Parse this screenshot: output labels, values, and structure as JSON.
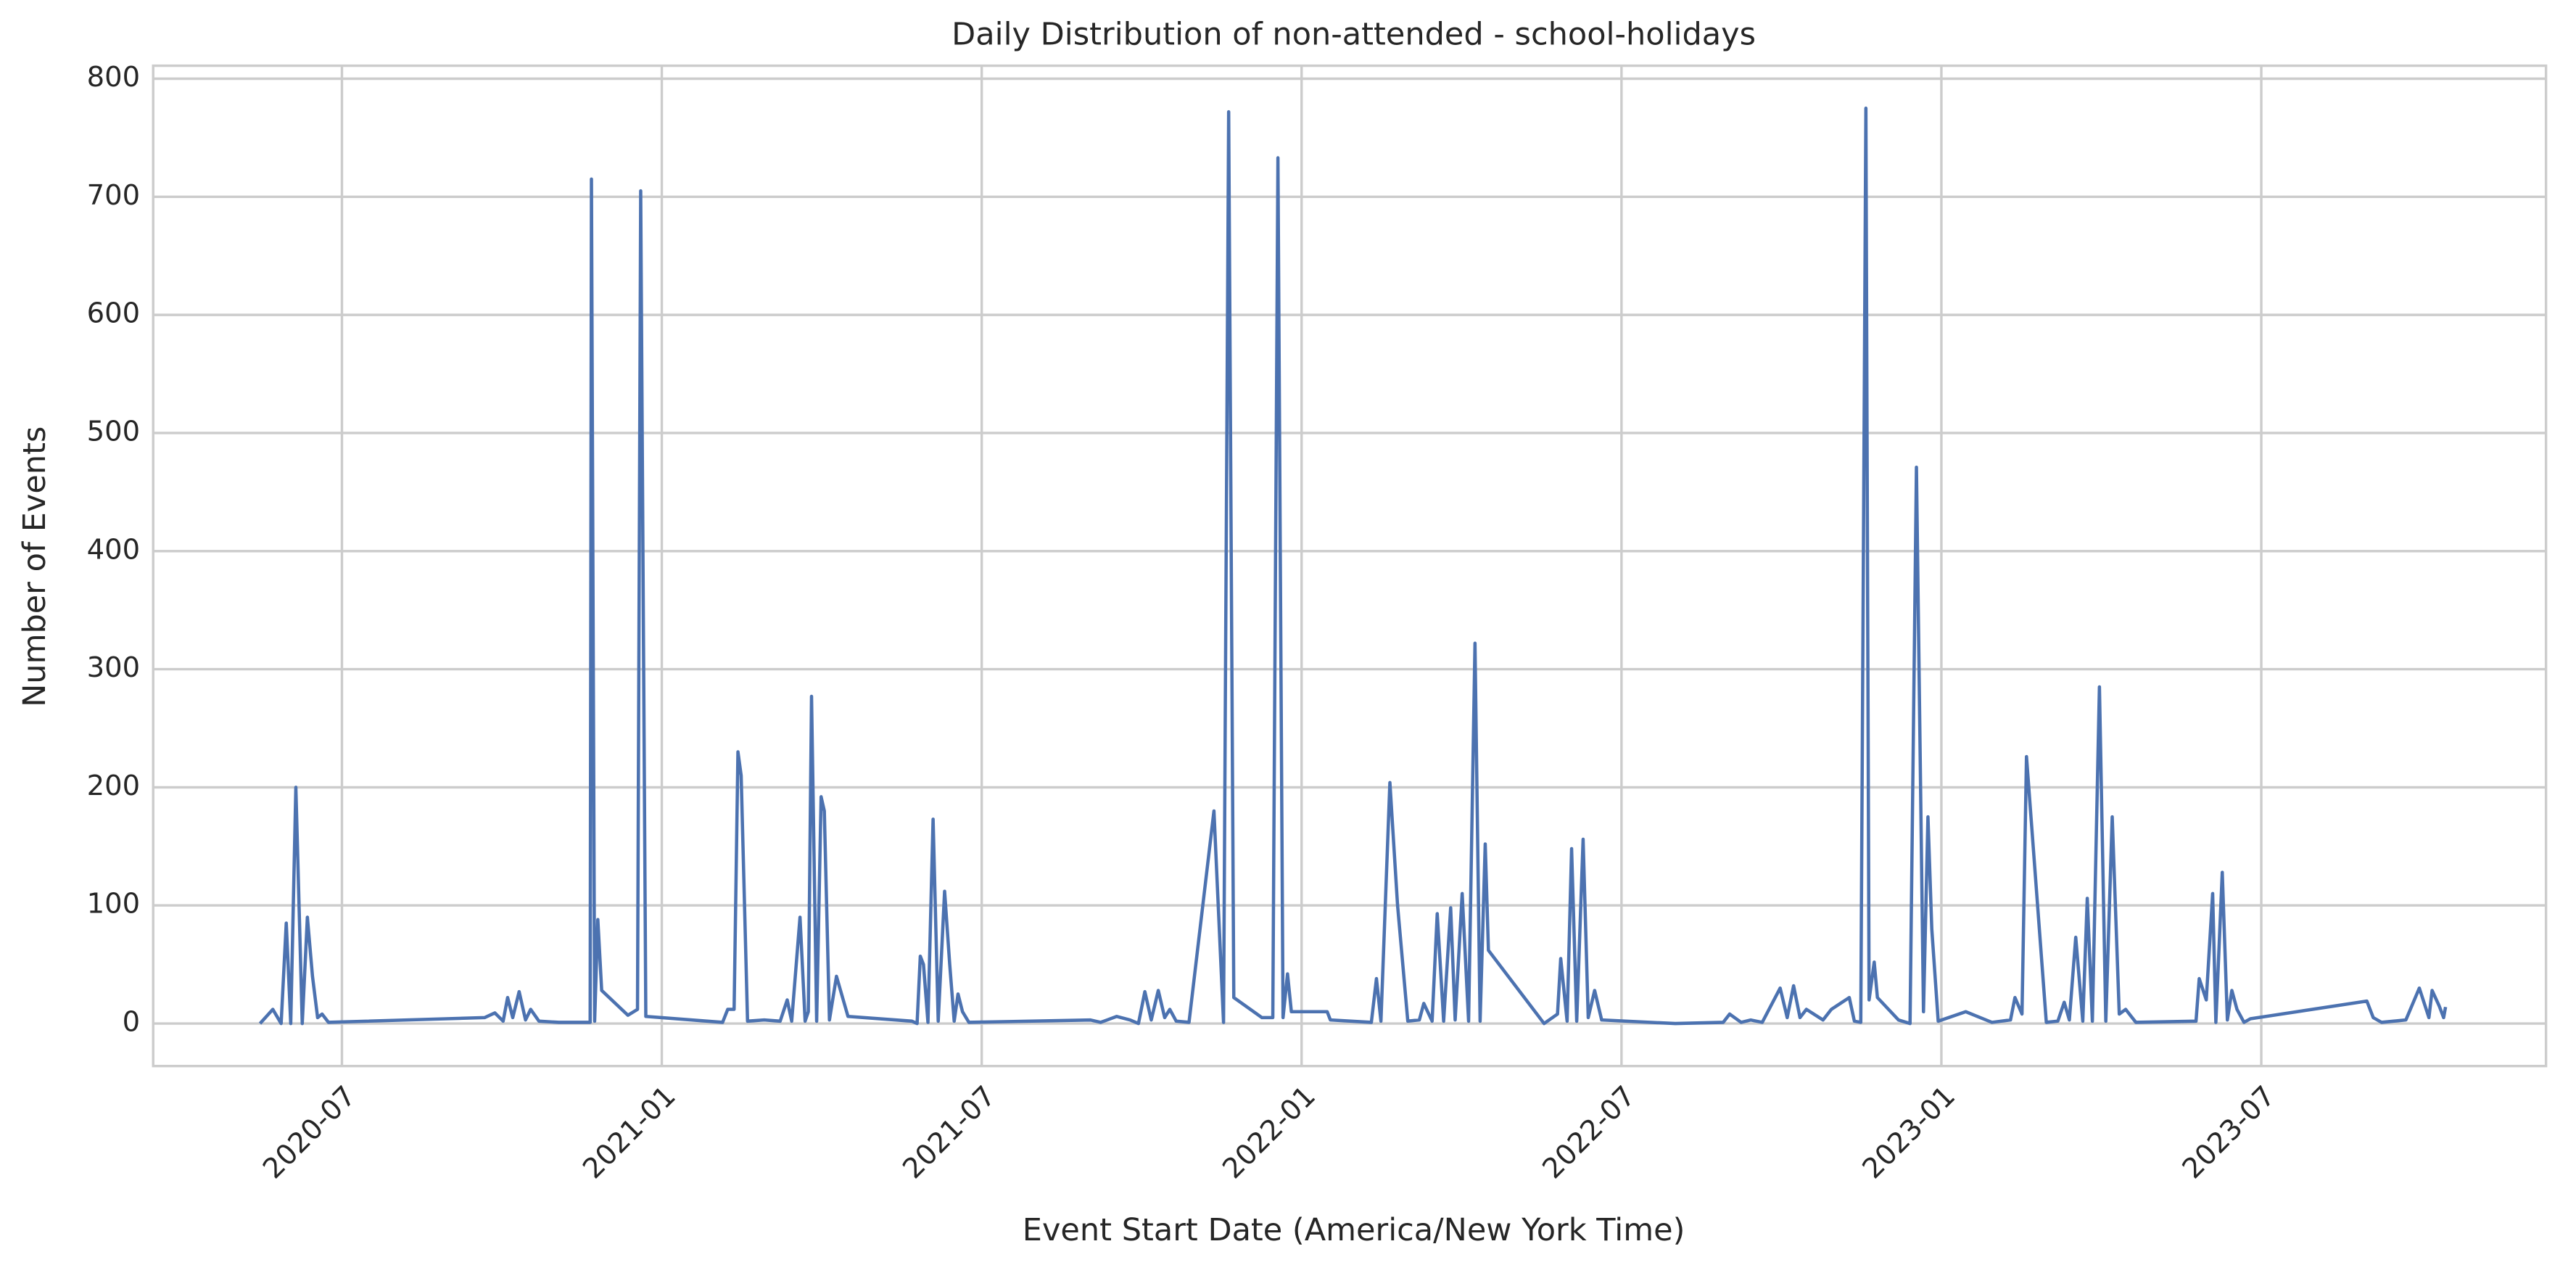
{
  "chart_data": {
    "type": "line",
    "title": "Daily Distribution of non-attended - school-holidays",
    "x_label": "Event Start Date (America/New York Time)",
    "y_label": "Number of Events",
    "color": "#4c72b0",
    "grid": true,
    "xlim": [
      2020.205,
      2023.945
    ],
    "ylim": [
      -36,
      811
    ],
    "xticks": [
      {
        "value": 2020.5,
        "label": "2020-07"
      },
      {
        "value": 2021.0,
        "label": "2021-01"
      },
      {
        "value": 2021.5,
        "label": "2021-07"
      },
      {
        "value": 2022.0,
        "label": "2022-01"
      },
      {
        "value": 2022.5,
        "label": "2022-07"
      },
      {
        "value": 2023.0,
        "label": "2023-01"
      },
      {
        "value": 2023.5,
        "label": "2023-07"
      }
    ],
    "yticks": [
      0,
      100,
      200,
      300,
      400,
      500,
      600,
      700,
      800
    ],
    "x": [
      2020.372,
      2020.392,
      2020.405,
      2020.413,
      2020.42,
      2020.428,
      2020.438,
      2020.446,
      2020.454,
      2020.462,
      2020.469,
      2020.479,
      2020.723,
      2020.739,
      2020.752,
      2020.759,
      2020.767,
      2020.777,
      2020.787,
      2020.795,
      2020.808,
      2020.839,
      2020.888,
      2020.89,
      2020.895,
      2020.9,
      2020.906,
      2020.947,
      2020.962,
      2020.967,
      2020.975,
      2021.095,
      2021.103,
      2021.113,
      2021.119,
      2021.124,
      2021.134,
      2021.16,
      2021.185,
      2021.196,
      2021.203,
      2021.216,
      2021.224,
      2021.229,
      2021.234,
      2021.242,
      2021.249,
      2021.254,
      2021.262,
      2021.273,
      2021.291,
      2021.391,
      2021.399,
      2021.404,
      2021.409,
      2021.416,
      2021.424,
      2021.432,
      2021.442,
      2021.45,
      2021.457,
      2021.463,
      2021.47,
      2021.48,
      2021.67,
      2021.686,
      2021.711,
      2021.732,
      2021.745,
      2021.755,
      2021.765,
      2021.776,
      2021.786,
      2021.794,
      2021.804,
      2021.824,
      2021.863,
      2021.878,
      2021.886,
      2021.894,
      2021.938,
      2021.955,
      2021.963,
      2021.971,
      2021.978,
      2021.984,
      2022.04,
      2022.045,
      2022.109,
      2022.117,
      2022.124,
      2022.138,
      2022.15,
      2022.166,
      2022.184,
      2022.191,
      2022.204,
      2022.212,
      2022.222,
      2022.233,
      2022.24,
      2022.251,
      2022.261,
      2022.271,
      2022.279,
      2022.287,
      2022.292,
      2022.379,
      2022.4,
      2022.405,
      2022.415,
      2022.422,
      2022.43,
      2022.44,
      2022.448,
      2022.458,
      2022.469,
      2022.584,
      2022.659,
      2022.669,
      2022.687,
      2022.702,
      2022.72,
      2022.748,
      2022.759,
      2022.769,
      2022.779,
      2022.789,
      2022.815,
      2022.828,
      2022.856,
      2022.864,
      2022.874,
      2022.882,
      2022.887,
      2022.895,
      2022.9,
      2022.933,
      2022.951,
      2022.961,
      2022.972,
      2022.979,
      2022.985,
      2022.995,
      2023.038,
      2023.079,
      2023.108,
      2023.115,
      2023.126,
      2023.133,
      2023.164,
      2023.182,
      2023.192,
      2023.2,
      2023.21,
      2023.221,
      2023.228,
      2023.236,
      2023.247,
      2023.257,
      2023.267,
      2023.278,
      2023.288,
      2023.304,
      2023.398,
      2023.403,
      2023.414,
      2023.424,
      2023.429,
      2023.439,
      2023.447,
      2023.454,
      2023.462,
      2023.473,
      2023.483,
      2023.665,
      2023.675,
      2023.688,
      2023.726,
      2023.747,
      2023.762,
      2023.767,
      2023.778,
      2023.785,
      2023.788
    ],
    "values": [
      0,
      12,
      0,
      85,
      0,
      200,
      0,
      90,
      40,
      5,
      8,
      1,
      5,
      9,
      2,
      22,
      5,
      27,
      3,
      12,
      2,
      1,
      1,
      715,
      2,
      88,
      28,
      7,
      12,
      705,
      6,
      1,
      12,
      12,
      230,
      210,
      2,
      3,
      2,
      20,
      2,
      90,
      2,
      10,
      277,
      2,
      192,
      180,
      3,
      40,
      6,
      2,
      0,
      57,
      50,
      1,
      173,
      2,
      112,
      50,
      2,
      25,
      10,
      1,
      3,
      1,
      6,
      3,
      0,
      27,
      3,
      28,
      5,
      12,
      2,
      1,
      180,
      1,
      772,
      22,
      5,
      5,
      733,
      5,
      42,
      10,
      10,
      3,
      1,
      38,
      2,
      204,
      100,
      2,
      3,
      17,
      2,
      93,
      2,
      98,
      3,
      110,
      2,
      322,
      2,
      152,
      62,
      0,
      8,
      55,
      2,
      148,
      2,
      156,
      5,
      28,
      3,
      0,
      1,
      8,
      1,
      3,
      1,
      30,
      5,
      32,
      5,
      12,
      3,
      12,
      22,
      2,
      1,
      775,
      20,
      52,
      22,
      3,
      0,
      471,
      10,
      175,
      80,
      2,
      10,
      1,
      3,
      22,
      8,
      226,
      1,
      2,
      18,
      3,
      73,
      2,
      106,
      2,
      285,
      2,
      175,
      8,
      12,
      1,
      2,
      38,
      20,
      110,
      1,
      128,
      3,
      28,
      12,
      1,
      4,
      19,
      5,
      1,
      3,
      30,
      5,
      28,
      15,
      5,
      14
    ]
  }
}
